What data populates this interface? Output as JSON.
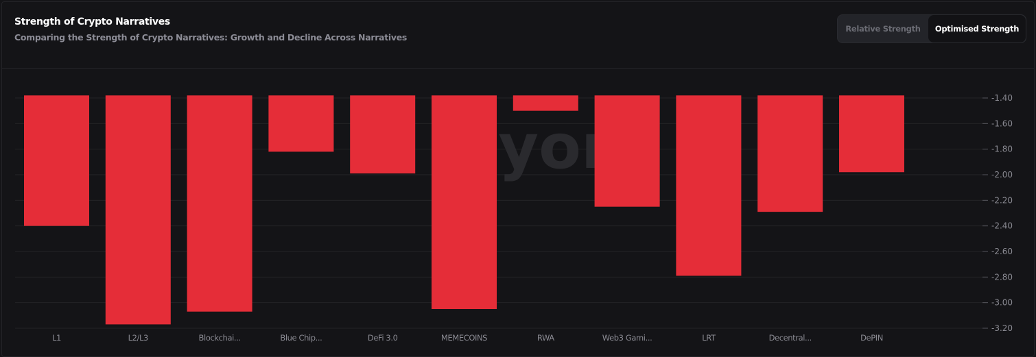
{
  "header": {
    "title": "Strength of Crypto Narratives",
    "subtitle": "Comparing the Strength of Crypto Narratives: Growth and Decline Across Narratives"
  },
  "toggle": {
    "options": [
      "Relative Strength",
      "Optimised Strength"
    ],
    "selected": "Optimised Strength"
  },
  "watermark": "dyor",
  "chart_data": {
    "type": "bar",
    "categories": [
      "L1",
      "L2/L3",
      "Blockchai...",
      "Blue Chip...",
      "DeFi 3.0",
      "MEMECOINS",
      "RWA",
      "Web3 Gami...",
      "LRT",
      "Decentral...",
      "DePIN"
    ],
    "values": [
      -2.4,
      -3.17,
      -3.07,
      -1.82,
      -1.99,
      -3.05,
      -1.5,
      -2.25,
      -2.79,
      -2.29,
      -1.98
    ],
    "baseline": -1.38,
    "ylim": [
      -3.2,
      -1.38
    ],
    "yticks": [
      "-1.40",
      "-1.60",
      "-1.80",
      "-2.00",
      "-2.20",
      "-2.40",
      "-2.60",
      "-2.80",
      "-3.00",
      "-3.20"
    ],
    "y_axis_position": "right",
    "grid": true,
    "bar_color": "#e52d38",
    "title": "",
    "xlabel": "",
    "ylabel": ""
  }
}
